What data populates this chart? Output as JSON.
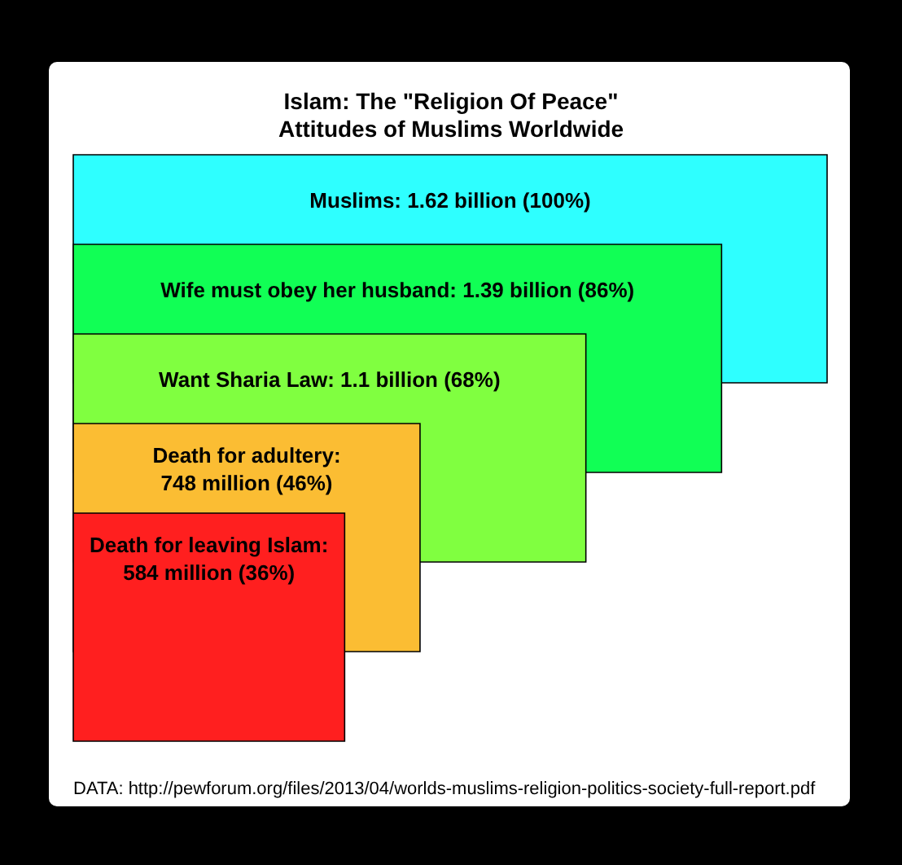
{
  "chart_data": {
    "type": "other",
    "title": "Islam: The \"Religion Of Peace\"",
    "subtitle": "Attitudes of Muslims Worldwide",
    "categories": [
      "Muslims: 1.62 billion",
      "Wife must obey her husband: 1.39 billion",
      "Want Sharia Law: 1.1 billion",
      "Death for adultery: 748 million",
      "Death for leaving Islam: 584 million"
    ],
    "values": [
      100,
      86,
      68,
      46,
      36
    ],
    "value_labels": [
      "(100%)",
      "(86%)",
      "(68%)",
      "(46%)",
      "(36%)"
    ],
    "colors": [
      "#2effff",
      "#11ff55",
      "#80ff40",
      "#fbbd33",
      "#ff1f1f"
    ],
    "annotations": [
      "DATA: http://pewforum.org/files/2013/04/worlds-muslims-religion-politics-society-full-report.pdf"
    ]
  }
}
